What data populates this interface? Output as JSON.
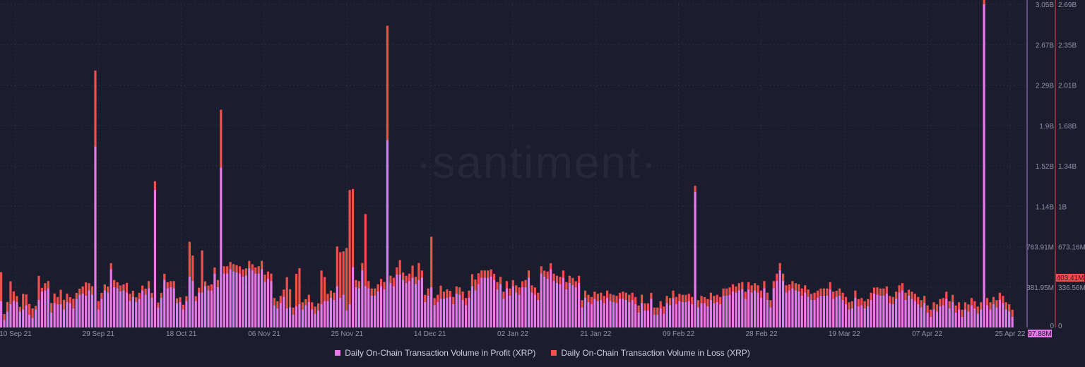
{
  "watermark": "·santiment·",
  "colors": {
    "background": "#1b1c2e",
    "grid": "#2a2c40",
    "profit": "#e879e8",
    "loss": "#f0504b",
    "profit_axis": "#b07ad0",
    "loss_axis": "#e0504b",
    "axis_text": "#8f93a8"
  },
  "legend": {
    "profit_label": "Daily On-Chain Transaction Volume in Profit (XRP)",
    "loss_label": "Daily On-Chain Transaction Volume in Loss (XRP)"
  },
  "chart_data": {
    "type": "bar",
    "stacked": true,
    "grid": true,
    "legend_position": "bottom-center",
    "x_ticks": [
      "10 Sep 21",
      "29 Sep 21",
      "18 Oct 21",
      "06 Nov 21",
      "25 Nov 21",
      "14 Dec 21",
      "02 Jan 22",
      "21 Jan 22",
      "09 Feb 22",
      "28 Feb 22",
      "19 Mar 22",
      "07 Apr 22",
      "25 Apr 22"
    ],
    "y_profit_ticks": [
      "0",
      "381.95M",
      "763.91M",
      "1.14B",
      "1.52B",
      "1.9B",
      "2.29B",
      "2.67B",
      "3.05B"
    ],
    "y_loss_ticks": [
      "0",
      "336.56M",
      "673.16M",
      "1B",
      "1.34B",
      "1.68B",
      "2.01B",
      "2.35B",
      "2.69B"
    ],
    "profit_max": 3.05,
    "loss_max": 2.69,
    "profit_current_label": "97.88M",
    "loss_current_label": "403.41M",
    "series": [
      {
        "name": "Daily On-Chain Transaction Volume in Profit (XRP)",
        "unit": "billion XRP",
        "values": [
          0.25,
          0.07,
          0.15,
          0.22,
          0.25,
          0.24,
          0.15,
          0.17,
          0.21,
          0.12,
          0.09,
          0.17,
          0.26,
          0.34,
          0.35,
          0.37,
          0.14,
          0.23,
          0.22,
          0.22,
          0.17,
          0.24,
          0.23,
          0.18,
          0.27,
          0.31,
          0.32,
          0.3,
          0.35,
          0.31,
          1.71,
          0.17,
          0.27,
          0.35,
          0.33,
          0.55,
          0.38,
          0.37,
          0.34,
          0.35,
          0.33,
          0.25,
          0.29,
          0.24,
          0.27,
          0.35,
          0.31,
          0.37,
          0.28,
          0.25,
          0.19,
          0.28,
          0.45,
          0.37,
          0.38,
          0.37,
          0.23,
          0.24,
          0.17,
          0.25,
          0.48,
          0.44,
          0.25,
          0.33,
          0.33,
          0.39,
          0.35,
          0.35,
          0.51,
          0.38,
          1.51,
          0.51,
          0.51,
          0.55,
          0.53,
          0.52,
          0.51,
          0.48,
          0.49,
          0.56,
          0.54,
          0.51,
          0.51,
          0.55,
          0.43,
          0.46,
          0.44,
          0.21,
          0.18,
          0.23,
          0.29,
          0.18,
          0.19,
          0.12,
          0.2,
          0.22,
          0.17,
          0.21,
          0.24,
          0.17,
          0.13,
          0.16,
          0.22,
          0.25,
          0.25,
          0.28,
          0.26,
          0.39,
          0.28,
          0.31,
          0.16,
          0.22,
          0.57,
          0.38,
          0.37,
          0.54,
          0.39,
          0.37,
          0.3,
          0.3,
          0.34,
          0.39,
          0.36,
          0.32,
          0.42,
          0.39,
          0.5,
          0.5,
          0.45,
          0.42,
          0.44,
          0.47,
          0.41,
          0.45,
          0.47,
          0.24,
          0.3,
          0.22,
          0.21,
          0.24,
          0.27,
          0.27,
          0.28,
          0.29,
          0.22,
          0.32,
          0.31,
          0.26,
          0.21,
          0.28,
          0.39,
          0.35,
          0.41,
          0.47,
          0.47,
          0.47,
          0.48,
          0.45,
          0.36,
          0.41,
          0.27,
          0.37,
          0.3,
          0.39,
          0.33,
          0.31,
          0.38,
          0.38,
          0.47,
          0.33,
          0.31,
          0.26,
          0.51,
          0.48,
          0.46,
          0.55,
          0.44,
          0.42,
          0.41,
          0.47,
          0.36,
          0.42,
          0.4,
          0.38,
          0.42,
          0.19,
          0.28,
          0.24,
          0.22,
          0.27,
          0.25,
          0.26,
          0.23,
          0.28,
          0.25,
          0.24,
          0.23,
          0.27,
          0.27,
          0.26,
          0.24,
          0.26,
          0.22,
          0.14,
          0.23,
          0.16,
          0.16,
          0.27,
          0.12,
          0.12,
          0.18,
          0.13,
          0.23,
          0.21,
          0.28,
          0.22,
          0.25,
          0.24,
          0.24,
          0.25,
          0.22,
          0.23,
          0.19,
          0.23,
          0.23,
          0.2,
          0.26,
          0.23,
          0.24,
          0.22,
          0.3,
          0.3,
          0.31,
          0.34,
          0.33,
          0.35,
          0.36,
          0.27,
          0.36,
          0.33,
          0.35,
          0.33,
          0.28,
          0.37,
          0.26,
          0.19,
          0.37,
          0.44,
          0.54,
          0.44,
          0.33,
          0.35,
          0.37,
          0.35,
          0.34,
          0.3,
          0.33,
          0.29,
          0.26,
          0.26,
          0.28,
          0.3,
          0.3,
          0.3,
          0.36,
          0.27,
          0.29,
          0.3,
          0.26,
          0.22,
          0.17,
          0.18,
          0.28,
          0.2,
          0.21,
          0.18,
          0.2,
          0.26,
          0.32,
          0.31,
          0.3,
          0.3,
          0.32,
          0.23,
          0.22,
          0.27,
          0.33,
          0.35,
          0.26,
          0.3,
          0.27,
          0.25,
          0.22,
          0.19,
          0.23,
          0.14,
          0.1,
          0.17,
          0.15,
          0.2,
          0.21,
          0.27,
          0.18,
          0.24,
          0.14,
          0.17,
          0.1,
          0.17,
          0.15,
          0.21,
          0.18,
          0.13,
          0.17,
          0.2,
          0.21,
          0.17,
          0.22,
          0.19,
          0.26,
          0.23,
          0.17,
          0.15,
          0.1
        ]
      },
      {
        "name": "Daily On-Chain Transaction Volume in Loss (XRP)",
        "unit": "billion XRP",
        "values": [
          0.24,
          0.08,
          0.08,
          0.19,
          0.08,
          0.08,
          0.04,
          0.13,
          0.09,
          0.09,
          0.05,
          0.07,
          0.2,
          0.03,
          0.06,
          0.06,
          0.08,
          0.04,
          0.06,
          0.12,
          0.08,
          0.07,
          0.05,
          0.08,
          0.05,
          0.05,
          0.06,
          0.11,
          0.06,
          0.07,
          0.63,
          0.1,
          0.05,
          0.05,
          0.05,
          0.05,
          0.06,
          0.05,
          0.05,
          0.05,
          0.08,
          0.06,
          0.05,
          0.04,
          0.05,
          0.06,
          0.05,
          0.06,
          0.04,
          0.04,
          0.04,
          0.04,
          0.05,
          0.05,
          0.05,
          0.06,
          0.04,
          0.04,
          0.04,
          0.04,
          0.06,
          0.05,
          0.04,
          0.04,
          0.04,
          0.04,
          0.04,
          0.05,
          0.08,
          0.05,
          0.48,
          0.06,
          0.06,
          0.06,
          0.06,
          0.06,
          0.06,
          0.06,
          0.06,
          0.06,
          0.06,
          0.06,
          0.06,
          0.07,
          0.06,
          0.06,
          0.06,
          0.06,
          0.06,
          0.06,
          0.06,
          0.06,
          0.06,
          0.06,
          0.06,
          0.06,
          0.06,
          0.06,
          0.06,
          0.06,
          0.06,
          0.06,
          0.06,
          0.06,
          0.06,
          0.06,
          0.06,
          0.06,
          0.06,
          0.06,
          0.06,
          0.06,
          0.06,
          0.06,
          0.06,
          0.06,
          0.06,
          0.06,
          0.06,
          0.06,
          0.06,
          0.06,
          0.06,
          0.06,
          0.06,
          0.06,
          0.06,
          0.06,
          0.06,
          0.06,
          0.06,
          0.06,
          0.06,
          0.06,
          0.06,
          0.06,
          0.06,
          0.06,
          0.06,
          0.06,
          0.06,
          0.06,
          0.06,
          0.06,
          0.06,
          0.06,
          0.06,
          0.06,
          0.06,
          0.06,
          0.06,
          0.06,
          0.06,
          0.06,
          0.06,
          0.06,
          0.06,
          0.06,
          0.06,
          0.06,
          0.06,
          0.06,
          0.06,
          0.06,
          0.06,
          0.06,
          0.06,
          0.06,
          0.06,
          0.06,
          0.06,
          0.06,
          0.06,
          0.06,
          0.06,
          0.06,
          0.06,
          0.06,
          0.06,
          0.06,
          0.06,
          0.06,
          0.06,
          0.06,
          0.06,
          0.06,
          0.06,
          0.06,
          0.06,
          0.06,
          0.06,
          0.06,
          0.06,
          0.06,
          0.06,
          0.06,
          0.06,
          0.06,
          0.06,
          0.06,
          0.06,
          0.06,
          0.06,
          0.06,
          0.06,
          0.06,
          0.06,
          0.06,
          0.06,
          0.06,
          0.06,
          0.06,
          0.06,
          0.06,
          0.06,
          0.06,
          0.06,
          0.06,
          0.06,
          0.06,
          0.06,
          0.06,
          0.06,
          0.06,
          0.06,
          0.06,
          0.06,
          0.06,
          0.06,
          0.06,
          0.06,
          0.06,
          0.06,
          0.06,
          0.06,
          0.06,
          0.06,
          0.06,
          0.06,
          0.06,
          0.06,
          0.06,
          0.06,
          0.06,
          0.06,
          0.06,
          0.06,
          0.06,
          0.06,
          0.06,
          0.06,
          0.06,
          0.06,
          0.06,
          0.06,
          0.06,
          0.06,
          0.06,
          0.06,
          0.06,
          0.06,
          0.06,
          0.06,
          0.06,
          0.06,
          0.06,
          0.06,
          0.06,
          0.06,
          0.06,
          0.06,
          0.06,
          0.06,
          0.06,
          0.06,
          0.06,
          0.06,
          0.06,
          0.06,
          0.06,
          0.06,
          0.06,
          0.06,
          0.06,
          0.06,
          0.06,
          0.06,
          0.06,
          0.06,
          0.06,
          0.06,
          0.06,
          0.06,
          0.06,
          0.06,
          0.06,
          0.06,
          0.06,
          0.06,
          0.06,
          0.06,
          0.06,
          0.06,
          0.06,
          0.06,
          0.06,
          0.06,
          0.06,
          0.06,
          0.06,
          0.06,
          0.06,
          0.06,
          0.06,
          0.06,
          0.06,
          0.06,
          0.06,
          0.06,
          0.06,
          0.06,
          0.06,
          0.06,
          0.06
        ]
      }
    ],
    "loss_override": {
      "1": 0.05,
      "5": 0.05,
      "10": 0.08,
      "11": 0.03,
      "17": 0.08,
      "31": 0.07,
      "45": 0.04,
      "60": 0.29,
      "61": 0.21,
      "64": 0.35,
      "68": 0.05,
      "69": 0.06,
      "80": 0.05,
      "81": 0.05,
      "91": 0.26,
      "92": 0.15,
      "94": 0.27,
      "95": 0.3,
      "97": 0.05,
      "102": 0.28,
      "103": 0.2,
      "107": 0.33,
      "108": 0.38,
      "109": 0.36,
      "110": 0.52,
      "111": 0.95,
      "112": 0.65,
      "116": 0.6,
      "125": 0.07,
      "127": 0.12,
      "131": 0.1,
      "133": 0.14,
      "137": 0.42,
      "140": 0.11,
      "142": 0.07,
      "143": 0.05,
      "147": 0.07,
      "150": 0.1,
      "151": 0.09,
      "152": 0.09,
      "155": 0.06,
      "157": 0.05,
      "163": 0.05,
      "166": 0.05,
      "173": 0.05,
      "175": 0.05,
      "183": 0.05,
      "187": 0.06,
      "197": 0.05,
      "204": 0.07,
      "207": 0.05,
      "216": 0.06,
      "221": 0.05,
      "224": 0.05,
      "234": 0.05,
      "246": 0.06,
      "251": 0.05,
      "258": 0.05,
      "266": 0.05,
      "278": 0.05,
      "289": 0.05
    },
    "spikes": {
      "profit": {
        "30": 1.71,
        "49": 1.3,
        "70": 1.51,
        "123": 1.77,
        "137": 0.38,
        "221": 1.28,
        "313": 3.05
      },
      "loss": {
        "30": 0.63,
        "49": 0.07,
        "70": 0.48,
        "123": 0.95,
        "137": 0.42,
        "221": 0.05,
        "313": 0.05
      }
    }
  }
}
